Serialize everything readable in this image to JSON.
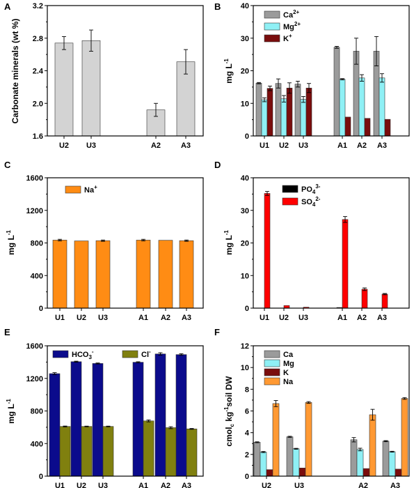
{
  "chart_data": [
    {
      "id": "A",
      "panel_label": "A",
      "type": "bar",
      "ylabel": "Carbonate minerals (wt %)",
      "ylim": [
        1.6,
        3.2
      ],
      "yticks": [
        1.6,
        2.0,
        2.4,
        2.8,
        3.2
      ],
      "ytick_labels": [
        "1.6",
        "2.0",
        "2.4",
        "2.8",
        "3.2"
      ],
      "categories": [
        "U2",
        "U3",
        "A2",
        "A3"
      ],
      "gap_after": 1,
      "series": [
        {
          "values": [
            2.74,
            2.77,
            1.92,
            2.51
          ],
          "errors": [
            0.08,
            0.13,
            0.08,
            0.15
          ],
          "color": "#d3d3d3"
        }
      ],
      "legend": null
    },
    {
      "id": "B",
      "panel_label": "B",
      "type": "bar",
      "ylabel": "mg L-1",
      "ylim": [
        0,
        40
      ],
      "yticks": [
        0,
        10,
        20,
        30,
        40
      ],
      "ytick_labels": [
        "0",
        "10",
        "20",
        "30",
        "40"
      ],
      "categories": [
        "U1",
        "U2",
        "U3",
        "A1",
        "A2",
        "A3"
      ],
      "gap_after": 2,
      "series": [
        {
          "name": "Ca",
          "sup": "2+",
          "values": [
            16.2,
            16.1,
            15.9,
            27.2,
            26.0,
            26.0
          ],
          "errors": [
            0.2,
            1.4,
            0.9,
            0.3,
            4.0,
            4.5
          ],
          "color": "#9b9b9b"
        },
        {
          "name": "Mg",
          "sup": "2+",
          "values": [
            11.1,
            11.4,
            11.2,
            17.4,
            17.8,
            17.8
          ],
          "errors": [
            0.6,
            1.0,
            0.9,
            0.2,
            1.0,
            1.3
          ],
          "color": "#8ff0f5"
        },
        {
          "name": "K",
          "sup": "+",
          "values": [
            14.6,
            14.7,
            14.7,
            5.8,
            5.4,
            5.1
          ],
          "errors": [
            0.7,
            1.6,
            1.4,
            0,
            0,
            0
          ],
          "color": "#7a0d0d"
        }
      ],
      "legend": "top-left"
    },
    {
      "id": "C",
      "panel_label": "C",
      "type": "bar",
      "ylabel": "mg L-1",
      "ylim": [
        0,
        1600
      ],
      "yticks": [
        0,
        400,
        800,
        1200,
        1600
      ],
      "ytick_labels": [
        "0",
        "400",
        "800",
        "1200",
        "1600"
      ],
      "categories": [
        "U1",
        "U2",
        "U3",
        "A1",
        "A2",
        "A3"
      ],
      "gap_after": 2,
      "series": [
        {
          "name": "Na",
          "sup": "+",
          "values": [
            835,
            825,
            828,
            835,
            833,
            828
          ],
          "errors": [
            10,
            0,
            8,
            10,
            0,
            8
          ],
          "color": "#ff8c14"
        }
      ],
      "legend": "top-left"
    },
    {
      "id": "D",
      "panel_label": "D",
      "type": "bar",
      "ylabel": "mg L-1",
      "ylim": [
        0,
        40
      ],
      "yticks": [
        0,
        10,
        20,
        30,
        40
      ],
      "ytick_labels": [
        "0",
        "10",
        "20",
        "30",
        "40"
      ],
      "categories": [
        "U1",
        "U2",
        "U3",
        "A1",
        "A2",
        "A3"
      ],
      "gap_after": 2,
      "series": [
        {
          "name": "PO",
          "sub": "4",
          "sup": "3-",
          "values": [
            0,
            0,
            0,
            0.2,
            0,
            0
          ],
          "errors": [
            0,
            0,
            0,
            0,
            0,
            0
          ],
          "color": "#000000"
        },
        {
          "name": "SO",
          "sub": "4",
          "sup": "2-",
          "values": [
            35.2,
            0.8,
            0.3,
            27.2,
            5.8,
            4.3
          ],
          "errors": [
            0.6,
            0,
            0,
            0.9,
            0.4,
            0.2
          ],
          "color": "#ff0000"
        }
      ],
      "legend": "top-left"
    },
    {
      "id": "E",
      "panel_label": "E",
      "type": "bar",
      "ylabel": "mg L-1",
      "ylim": [
        0,
        1600
      ],
      "yticks": [
        0,
        400,
        800,
        1200,
        1600
      ],
      "ytick_labels": [
        "0",
        "400",
        "800",
        "1200",
        "1600"
      ],
      "categories": [
        "U1",
        "U2",
        "U3",
        "A1",
        "A2",
        "A3"
      ],
      "gap_after": 2,
      "series": [
        {
          "name": "HCO",
          "sub": "3",
          "sup": "-",
          "values": [
            1258,
            1405,
            1383,
            1398,
            1500,
            1492
          ],
          "errors": [
            12,
            6,
            6,
            6,
            15,
            10
          ],
          "color": "#0b0b8c"
        },
        {
          "name": "Cl",
          "sup": "-",
          "values": [
            610,
            610,
            610,
            678,
            595,
            580
          ],
          "errors": [
            5,
            4,
            4,
            12,
            12,
            5
          ],
          "color": "#80800f"
        }
      ],
      "legend": "top-left"
    },
    {
      "id": "F",
      "panel_label": "F",
      "type": "bar",
      "ylabel": "cmolc kg-1soil DW",
      "ylim": [
        0,
        12
      ],
      "yticks": [
        0,
        2,
        4,
        6,
        8,
        10,
        12
      ],
      "ytick_labels": [
        "0",
        "2",
        "4",
        "6",
        "8",
        "10",
        "12"
      ],
      "categories": [
        "U2",
        "U3",
        "A2",
        "A3"
      ],
      "gap_after": 1,
      "series": [
        {
          "name": "Ca",
          "values": [
            3.12,
            3.62,
            3.35,
            3.22
          ],
          "errors": [
            0.04,
            0.05,
            0.2,
            0.05
          ],
          "color": "#9b9b9b"
        },
        {
          "name": "Mg",
          "values": [
            2.22,
            2.52,
            2.45,
            2.25
          ],
          "errors": [
            0.05,
            0.04,
            0.12,
            0.04
          ],
          "color": "#8ff0f5"
        },
        {
          "name": "K",
          "values": [
            0.6,
            0.75,
            0.7,
            0.65
          ],
          "errors": [
            0,
            0,
            0,
            0
          ],
          "color": "#7a0d0d"
        },
        {
          "name": "Na",
          "values": [
            6.68,
            6.78,
            5.65,
            7.15
          ],
          "errors": [
            0.28,
            0.08,
            0.5,
            0.08
          ],
          "color": "#ff9933"
        }
      ],
      "legend": "top-left"
    }
  ]
}
